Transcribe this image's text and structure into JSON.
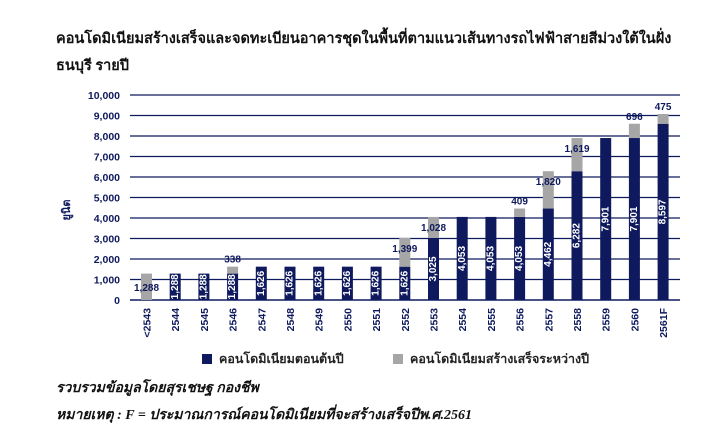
{
  "header": {
    "title": "คอนโดมิเนียมสร้างเสร็จและจดทะเบียนอาคารชุดในพื้นที่ตามแนวเส้นทางรถไฟฟ้าสายสีม่วงใต้ในฝั่งธนบุรี รายปี"
  },
  "footer": {
    "source": "รวบรวมข้อมูลโดยสุรเชษฐ กองชีพ",
    "note": "หมายเหตุ : F = ประมาณการณ์คอนโดมิเนียมที่จะสร้างเสร็จปีพ.ศ.2561"
  },
  "colors": {
    "existing": "#0f1a5e",
    "new": "#a6a6a6",
    "axis": "#0f1a5e",
    "grid": "#0f1a5e"
  },
  "chart_data": {
    "type": "bar",
    "stacked": true,
    "categories": [
      "<2543",
      "2544",
      "2545",
      "2546",
      "2547",
      "2548",
      "2549",
      "2550",
      "2551",
      "2552",
      "2553",
      "2554",
      "2555",
      "2556",
      "2557",
      "2558",
      "2559",
      "2560",
      "2561F"
    ],
    "series": [
      {
        "name": "คอนโดมิเนียมตอนต้นปี",
        "values": [
          0,
          1288,
          1288,
          1288,
          1626,
          1626,
          1626,
          1626,
          1626,
          1626,
          3025,
          4053,
          4053,
          4053,
          4462,
          6282,
          7901,
          7901,
          8597
        ],
        "labels": [
          "",
          "1,288",
          "1,288",
          "1,288",
          "1,626",
          "1,626",
          "1,626",
          "1,626",
          "1,626",
          "1,626",
          "3,025",
          "4,053",
          "4,053",
          "4,053",
          "4,462",
          "6,282",
          "7,901",
          "7,901",
          "8,597"
        ]
      },
      {
        "name": "คอนโดมิเนียมสร้างเสร็จระหว่างปี",
        "values": [
          1288,
          0,
          0,
          338,
          0,
          0,
          0,
          0,
          0,
          1399,
          1028,
          0,
          0,
          409,
          1820,
          1619,
          0,
          696,
          475
        ],
        "labels": [
          "1,288",
          "",
          "",
          "338",
          "",
          "",
          "",
          "",
          "",
          "1,399",
          "1,028",
          "",
          "",
          "409",
          "1,820",
          "1,619",
          "",
          "696",
          "475"
        ]
      }
    ],
    "ylabel": "ยูนิต",
    "ylim": [
      0,
      10000
    ],
    "yticks": [
      "0",
      "1,000",
      "2,000",
      "3,000",
      "4,000",
      "5,000",
      "6,000",
      "7,000",
      "8,000",
      "9,000",
      "10,000"
    ],
    "grid": true,
    "legend_position": "bottom"
  }
}
